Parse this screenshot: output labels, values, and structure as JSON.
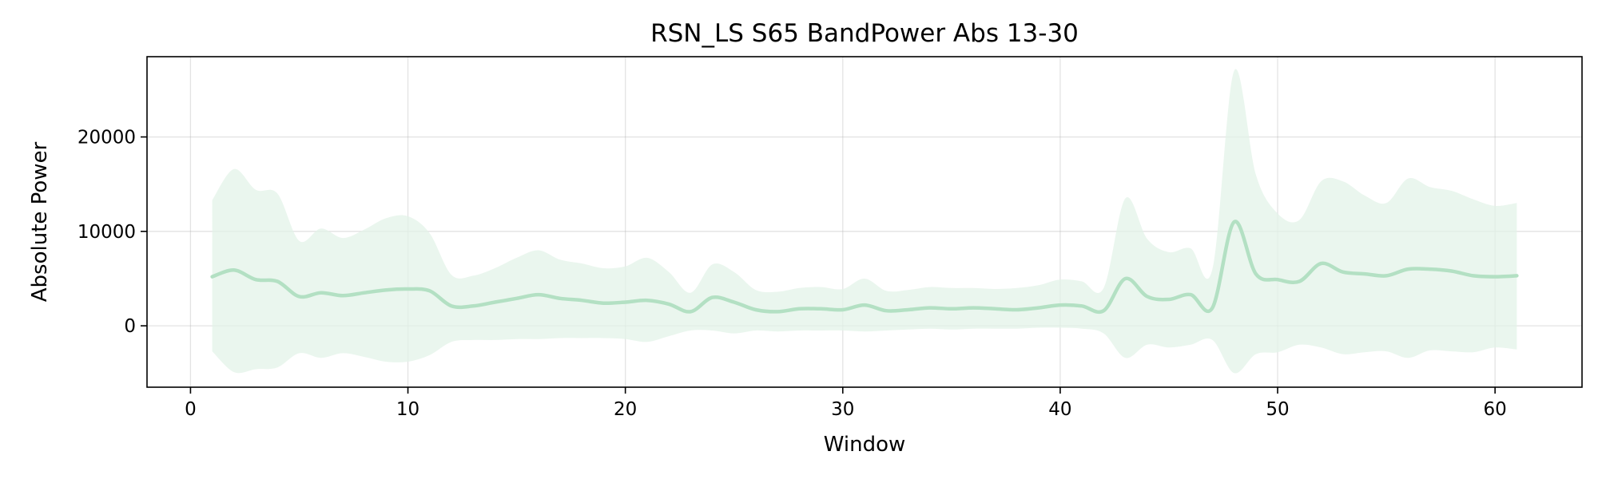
{
  "chart_data": {
    "type": "line",
    "title": "RSN_LS S65 BandPower Abs 13-30",
    "xlabel": "Window",
    "ylabel": "Absolute Power",
    "xlim": [
      -2,
      64
    ],
    "ylim": [
      -6500,
      28500
    ],
    "xticks": [
      0,
      10,
      20,
      30,
      40,
      50,
      60
    ],
    "yticks": [
      0,
      10000,
      20000
    ],
    "grid": true,
    "colors": {
      "line": "#b3e0c3",
      "band": "#e3f3e8",
      "frame": "#000000"
    },
    "series": [
      {
        "x": [
          1,
          2,
          3,
          4,
          5,
          6,
          7,
          8,
          9,
          10,
          11,
          12,
          13,
          14,
          15,
          16,
          17,
          18,
          19,
          20,
          21,
          22,
          23,
          24,
          25,
          26,
          27,
          28,
          29,
          30,
          31,
          32,
          33,
          34,
          35,
          36,
          37,
          38,
          39,
          40,
          41,
          42,
          43,
          44,
          45,
          46,
          47,
          48,
          49,
          50,
          51,
          52,
          53,
          54,
          55,
          56,
          57,
          58,
          59,
          60,
          61
        ],
        "mean": [
          5200,
          5900,
          4900,
          4700,
          3100,
          3500,
          3200,
          3500,
          3800,
          3900,
          3700,
          2100,
          2100,
          2500,
          2900,
          3300,
          2900,
          2700,
          2400,
          2500,
          2700,
          2300,
          1500,
          3000,
          2500,
          1700,
          1500,
          1800,
          1800,
          1700,
          2200,
          1600,
          1700,
          1900,
          1800,
          1900,
          1800,
          1700,
          1900,
          2200,
          2100,
          1600,
          5000,
          3100,
          2800,
          3300,
          1900,
          11000,
          5500,
          4900,
          4700,
          6600,
          5700,
          5500,
          5300,
          6000,
          6000,
          5800,
          5300,
          5200,
          5300
        ],
        "upper": [
          13300,
          16600,
          14400,
          14000,
          9000,
          10300,
          9300,
          10200,
          11400,
          11600,
          9800,
          5400,
          5300,
          6100,
          7200,
          8000,
          7000,
          6600,
          6100,
          6300,
          7200,
          5700,
          3500,
          6500,
          5700,
          3800,
          3600,
          4000,
          4100,
          3900,
          5000,
          3700,
          3800,
          4100,
          4000,
          4000,
          3900,
          4000,
          4300,
          4900,
          4700,
          4000,
          13500,
          9200,
          7800,
          8200,
          6000,
          27000,
          16000,
          11900,
          11200,
          15300,
          15300,
          13800,
          13000,
          15600,
          14700,
          14300,
          13400,
          12700,
          13000
        ],
        "lower": [
          -2700,
          -4900,
          -4600,
          -4400,
          -2900,
          -3400,
          -2900,
          -3300,
          -3800,
          -3800,
          -3100,
          -1700,
          -1500,
          -1500,
          -1400,
          -1400,
          -1300,
          -1300,
          -1300,
          -1400,
          -1700,
          -1100,
          -500,
          -500,
          -800,
          -500,
          -600,
          -500,
          -500,
          -500,
          -600,
          -500,
          -400,
          -300,
          -400,
          -300,
          -300,
          -300,
          -200,
          -200,
          -300,
          -800,
          -3400,
          -2000,
          -2300,
          -2000,
          -1500,
          -5000,
          -3000,
          -2800,
          -2000,
          -2300,
          -3000,
          -2800,
          -2700,
          -3400,
          -2600,
          -2700,
          -2800,
          -2300,
          -2500
        ]
      }
    ]
  }
}
